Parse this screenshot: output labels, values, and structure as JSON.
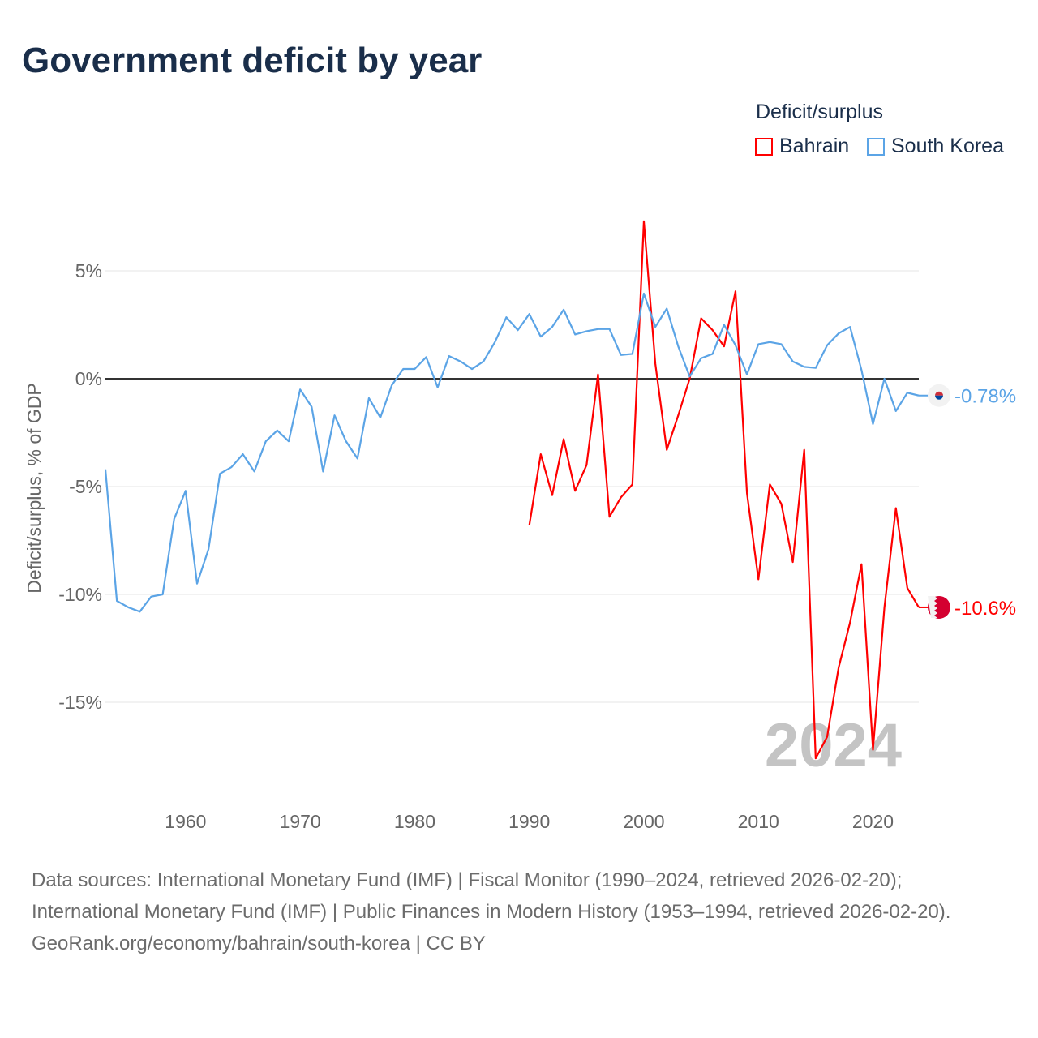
{
  "title": "Government deficit by year",
  "chart_data": {
    "type": "line",
    "title": "Government deficit by year",
    "xlabel": "",
    "ylabel": "Deficit/surplus, % of GDP",
    "legend_title": "Deficit/surplus",
    "legend_position": "top-right",
    "xlim": [
      1953,
      2024
    ],
    "ylim": [
      -19,
      8.5
    ],
    "x_ticks": [
      1960,
      1970,
      1980,
      1990,
      2000,
      2010,
      2020
    ],
    "y_ticks": [
      5,
      0,
      -5,
      -10,
      -15
    ],
    "y_tick_labels": [
      "5%",
      "0%",
      "-5%",
      "-10%",
      "-15%"
    ],
    "grid": true,
    "year_watermark": "2024",
    "series": [
      {
        "name": "Bahrain",
        "color": "#ff0000",
        "end_label": "-10.6%",
        "flag": "bahrain-flag",
        "x": [
          1990,
          1991,
          1992,
          1993,
          1994,
          1995,
          1996,
          1997,
          1998,
          1999,
          2000,
          2001,
          2002,
          2003,
          2004,
          2005,
          2006,
          2007,
          2008,
          2009,
          2010,
          2011,
          2012,
          2013,
          2014,
          2015,
          2016,
          2017,
          2018,
          2019,
          2020,
          2021,
          2022,
          2023,
          2024
        ],
        "values": [
          -6.8,
          -3.5,
          -5.4,
          -2.8,
          -5.2,
          -4.0,
          0.2,
          -6.4,
          -5.5,
          -4.9,
          7.3,
          0.7,
          -3.3,
          -1.7,
          0,
          2.8,
          2.25,
          1.5,
          4.05,
          -5.3,
          -9.3,
          -4.9,
          -5.8,
          -8.5,
          -3.3,
          -17.6,
          -16.6,
          -13.4,
          -11.3,
          -8.6,
          -17.2,
          -10.6,
          -6.0,
          -9.7,
          -10.6
        ]
      },
      {
        "name": "South Korea",
        "color": "#5ba4e6",
        "end_label": "-0.78%",
        "flag": "south-korea-flag",
        "x": [
          1953,
          1954,
          1955,
          1956,
          1957,
          1958,
          1959,
          1960,
          1961,
          1962,
          1963,
          1964,
          1965,
          1966,
          1967,
          1968,
          1969,
          1970,
          1971,
          1972,
          1973,
          1974,
          1975,
          1976,
          1977,
          1978,
          1979,
          1980,
          1981,
          1982,
          1983,
          1984,
          1985,
          1986,
          1987,
          1988,
          1989,
          1990,
          1991,
          1992,
          1993,
          1994,
          1995,
          1996,
          1997,
          1998,
          1999,
          2000,
          2001,
          2002,
          2003,
          2004,
          2005,
          2006,
          2007,
          2008,
          2009,
          2010,
          2011,
          2012,
          2013,
          2014,
          2015,
          2016,
          2017,
          2018,
          2019,
          2020,
          2021,
          2022,
          2023,
          2024
        ],
        "values": [
          -4.2,
          -10.3,
          -10.6,
          -10.8,
          -10.1,
          -10.0,
          -6.5,
          -5.2,
          -9.5,
          -7.9,
          -4.4,
          -4.1,
          -3.5,
          -4.3,
          -2.9,
          -2.4,
          -2.9,
          -0.5,
          -1.3,
          -4.3,
          -1.7,
          -2.9,
          -3.7,
          -0.9,
          -1.8,
          -0.3,
          0.45,
          0.45,
          1.0,
          -0.4,
          1.05,
          0.8,
          0.45,
          0.8,
          1.7,
          2.85,
          2.25,
          3.0,
          1.95,
          2.4,
          3.2,
          2.05,
          2.2,
          2.3,
          2.3,
          1.1,
          1.15,
          3.95,
          2.4,
          3.25,
          1.5,
          0.1,
          0.95,
          1.15,
          2.5,
          1.55,
          0.2,
          1.6,
          1.7,
          1.6,
          0.8,
          0.55,
          0.5,
          1.55,
          2.1,
          2.4,
          0.4,
          -2.1,
          0,
          -1.5,
          -0.65,
          -0.78
        ]
      }
    ]
  },
  "footer": {
    "sources": "Data sources: International Monetary Fund (IMF) | Fiscal Monitor (1990–2024, retrieved 2026-02-20); International Monetary Fund (IMF) | Public Finances in Modern History (1953–1994, retrieved 2026-02-20).",
    "credit": "GeoRank.org/economy/bahrain/south-korea | CC BY"
  }
}
